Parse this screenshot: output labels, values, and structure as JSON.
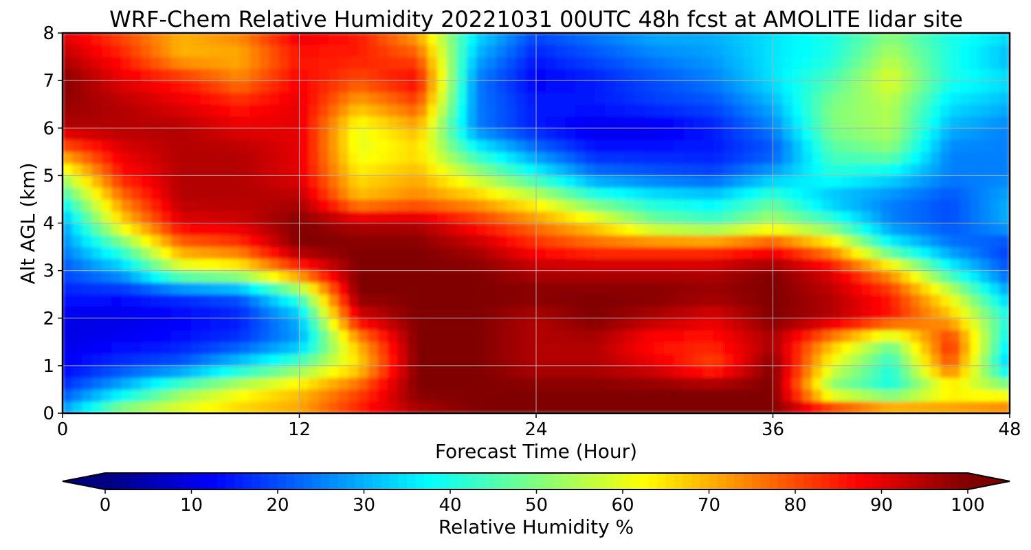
{
  "chart_data": {
    "type": "heatmap",
    "subtype": "filled-contour",
    "title": "WRF-Chem Relative Humidity 20221031 00UTC 48h fcst at AMOLITE lidar site",
    "xlabel": "Forecast Time (Hour)",
    "ylabel": "Alt AGL (km)",
    "xlim": [
      0,
      48
    ],
    "ylim": [
      0,
      8
    ],
    "xticks": [
      0,
      12,
      24,
      36,
      48
    ],
    "xtick_labels": [
      "0",
      "12",
      "24",
      "36",
      "48"
    ],
    "yticks": [
      0,
      1,
      2,
      3,
      4,
      5,
      6,
      7,
      8
    ],
    "ytick_labels": [
      "0",
      "1",
      "2",
      "3",
      "4",
      "5",
      "6",
      "7",
      "8"
    ],
    "grid": true,
    "colormap": "jet",
    "colorbar": {
      "label": "Relative Humidity %",
      "orientation": "horizontal",
      "position": "bottom",
      "extend": "both",
      "vmin": 0,
      "vmax": 100,
      "ticks": [
        0,
        10,
        20,
        30,
        40,
        50,
        60,
        70,
        80,
        90,
        100
      ],
      "tick_labels": [
        "0",
        "10",
        "20",
        "30",
        "40",
        "50",
        "60",
        "70",
        "80",
        "90",
        "100"
      ]
    },
    "x": [
      0,
      3,
      6,
      9,
      12,
      15,
      18,
      21,
      24,
      27,
      30,
      33,
      36,
      39,
      42,
      45,
      48
    ],
    "y": [
      0,
      0.5,
      1,
      1.5,
      2,
      2.5,
      3,
      3.5,
      4,
      4.5,
      5,
      5.5,
      6,
      6.5,
      7,
      7.5,
      8
    ],
    "z": [
      [
        30,
        55,
        62,
        68,
        72,
        85,
        95,
        100,
        100,
        100,
        100,
        100,
        100,
        90,
        80,
        75,
        80
      ],
      [
        18,
        32,
        50,
        60,
        68,
        80,
        100,
        100,
        100,
        100,
        100,
        100,
        100,
        50,
        40,
        60,
        55
      ],
      [
        12,
        18,
        22,
        35,
        48,
        65,
        100,
        100,
        95,
        95,
        90,
        80,
        100,
        60,
        40,
        80,
        30
      ],
      [
        10,
        12,
        14,
        18,
        28,
        70,
        100,
        100,
        95,
        95,
        85,
        85,
        95,
        70,
        50,
        85,
        35
      ],
      [
        10,
        10,
        12,
        15,
        30,
        90,
        100,
        100,
        95,
        100,
        95,
        90,
        100,
        95,
        85,
        70,
        40
      ],
      [
        15,
        14,
        18,
        22,
        45,
        100,
        100,
        100,
        100,
        100,
        100,
        98,
        100,
        95,
        85,
        60,
        30
      ],
      [
        20,
        30,
        55,
        60,
        80,
        100,
        100,
        100,
        95,
        95,
        95,
        95,
        100,
        90,
        70,
        40,
        20
      ],
      [
        25,
        45,
        75,
        80,
        100,
        100,
        100,
        95,
        85,
        80,
        80,
        80,
        85,
        70,
        40,
        25,
        18
      ],
      [
        28,
        65,
        90,
        92,
        100,
        95,
        95,
        85,
        75,
        65,
        50,
        45,
        55,
        45,
        25,
        20,
        30
      ],
      [
        40,
        75,
        95,
        95,
        95,
        70,
        75,
        70,
        60,
        45,
        38,
        35,
        45,
        30,
        25,
        20,
        30
      ],
      [
        55,
        85,
        95,
        95,
        90,
        65,
        70,
        55,
        40,
        25,
        22,
        20,
        30,
        40,
        35,
        25,
        25
      ],
      [
        75,
        90,
        95,
        95,
        90,
        60,
        65,
        40,
        25,
        15,
        15,
        15,
        20,
        45,
        50,
        25,
        25
      ],
      [
        95,
        95,
        95,
        90,
        90,
        60,
        70,
        25,
        15,
        10,
        10,
        15,
        25,
        50,
        55,
        30,
        25
      ],
      [
        98,
        95,
        90,
        85,
        90,
        70,
        80,
        25,
        15,
        15,
        18,
        20,
        30,
        50,
        55,
        35,
        30
      ],
      [
        100,
        90,
        85,
        75,
        88,
        80,
        88,
        25,
        12,
        15,
        20,
        25,
        35,
        45,
        60,
        40,
        35
      ],
      [
        95,
        85,
        70,
        70,
        85,
        85,
        80,
        30,
        15,
        20,
        25,
        28,
        35,
        40,
        55,
        40,
        30
      ],
      [
        90,
        80,
        70,
        75,
        90,
        85,
        70,
        35,
        20,
        25,
        30,
        30,
        35,
        40,
        50,
        40,
        35
      ]
    ]
  }
}
